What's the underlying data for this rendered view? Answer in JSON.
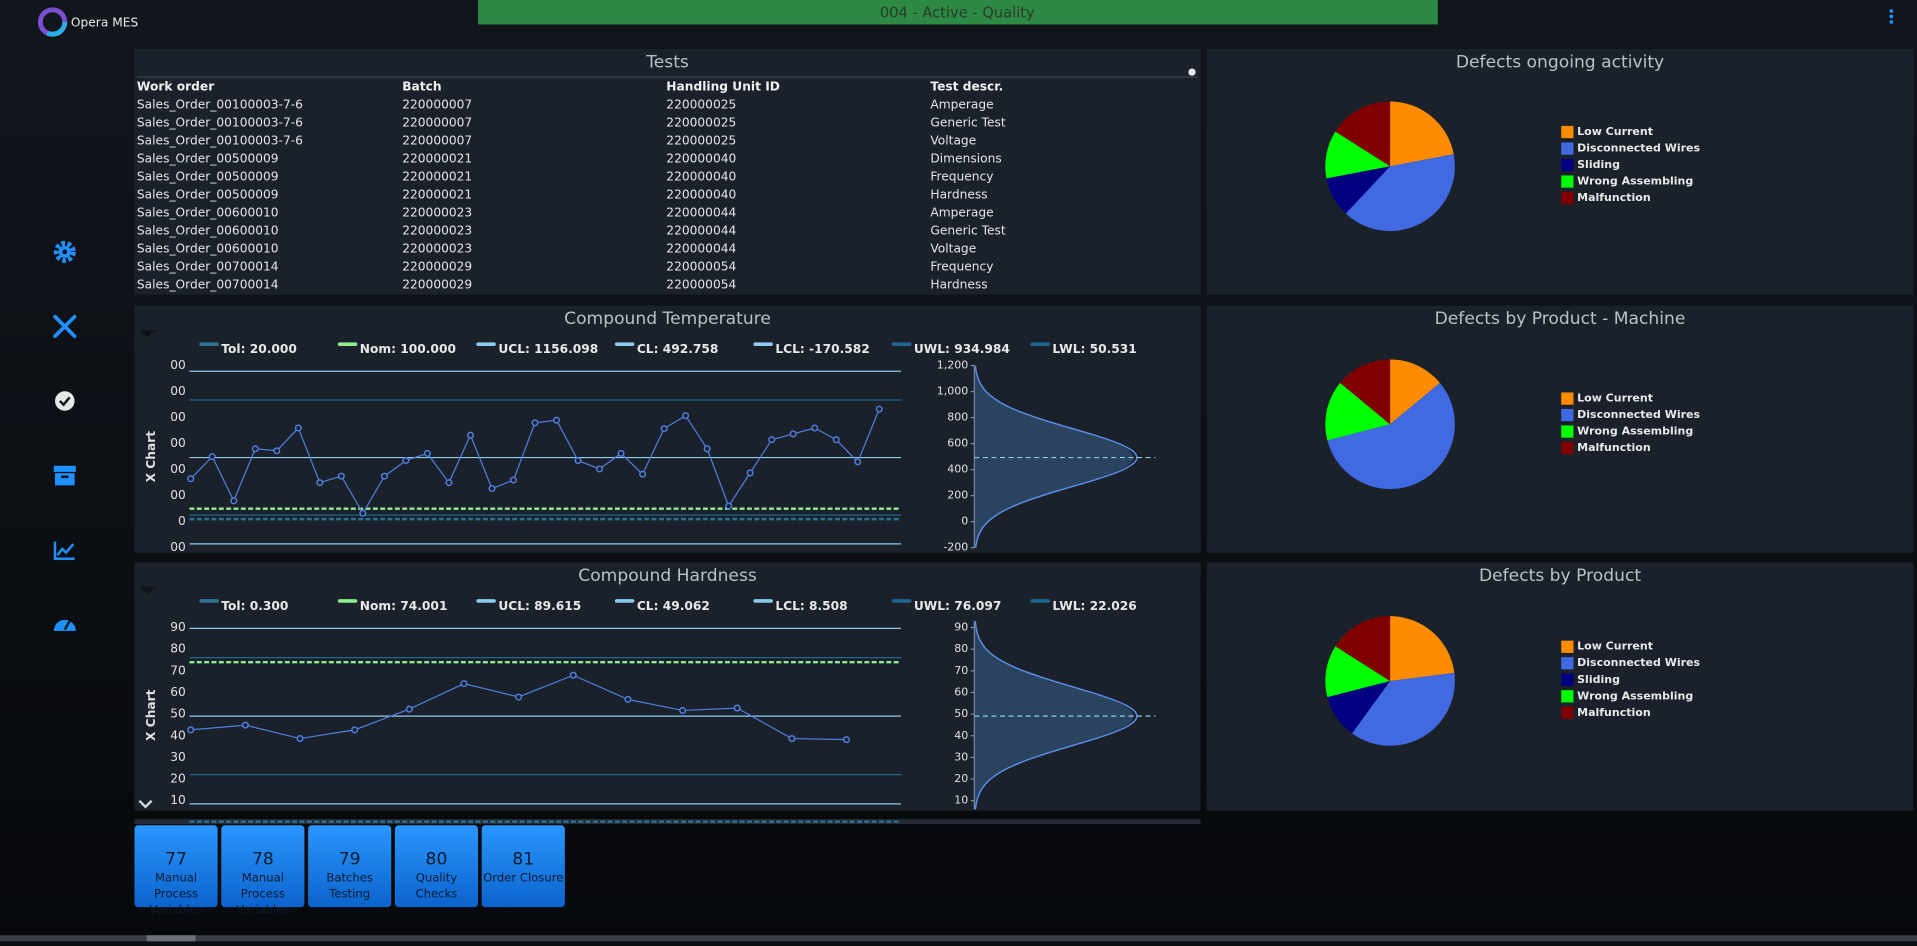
{
  "header": {
    "app": "Opera MES",
    "status": "004 - Active - Quality"
  },
  "table": {
    "title": "Tests",
    "columns": [
      "Work order",
      "Batch",
      "Handling Unit ID",
      "Test descr."
    ],
    "rows": [
      [
        "Sales_Order_00100003-7-6",
        "220000007",
        "220000025",
        "Amperage"
      ],
      [
        "Sales_Order_00100003-7-6",
        "220000007",
        "220000025",
        "Generic Test"
      ],
      [
        "Sales_Order_00100003-7-6",
        "220000007",
        "220000025",
        "Voltage"
      ],
      [
        "Sales_Order_00500009",
        "220000021",
        "220000040",
        "Dimensions"
      ],
      [
        "Sales_Order_00500009",
        "220000021",
        "220000040",
        "Frequency"
      ],
      [
        "Sales_Order_00500009",
        "220000021",
        "220000040",
        "Hardness"
      ],
      [
        "Sales_Order_00600010",
        "220000023",
        "220000044",
        "Amperage"
      ],
      [
        "Sales_Order_00600010",
        "220000023",
        "220000044",
        "Generic Test"
      ],
      [
        "Sales_Order_00600010",
        "220000023",
        "220000044",
        "Voltage"
      ],
      [
        "Sales_Order_00700014",
        "220000029",
        "220000054",
        "Frequency"
      ],
      [
        "Sales_Order_00700014",
        "220000029",
        "220000054",
        "Hardness"
      ]
    ]
  },
  "chart_data": [
    {
      "type": "control",
      "title": "Compound Temperature",
      "y_label": "X Chart",
      "color": "#4f7fe0",
      "ylim": [
        -200,
        1200
      ],
      "yticks": [
        -200,
        0,
        200,
        400,
        600,
        800,
        {
          "value": 1000,
          "label": "1,000"
        },
        {
          "value": 1200,
          "label": "1,200"
        }
      ],
      "limits": [
        {
          "label": "Tol: 20.000",
          "value": 20,
          "color": "#2f7394"
        },
        {
          "label": "Nom: 100.000",
          "value": 100,
          "color": "#90ee90"
        },
        {
          "label": "UCL: 1156.098",
          "value": 1156.098,
          "color": "#8ecbef"
        },
        {
          "label": "CL: 492.758",
          "value": 492.758,
          "color": "#8ecbef"
        },
        {
          "label": "LCL: -170.582",
          "value": -170.582,
          "color": "#8ecbef"
        },
        {
          "label": "UWL: 934.984",
          "value": 934.984,
          "color": "#1f6690"
        },
        {
          "label": "LWL: 50.531",
          "value": 50.531,
          "color": "#1f6690"
        }
      ],
      "values": [
        330,
        500,
        160,
        560,
        545,
        720,
        300,
        350,
        65,
        350,
        470,
        525,
        300,
        665,
        255,
        320,
        760,
        780,
        470,
        405,
        525,
        365,
        715,
        815,
        560,
        120,
        375,
        630,
        675,
        720,
        630,
        460,
        865
      ]
    },
    {
      "type": "control",
      "title": "Compound Hardness",
      "y_label": "X Chart",
      "color": "#4f7fe0",
      "ylim": [
        6,
        93
      ],
      "yticks": [
        10,
        20,
        30,
        40,
        50,
        60,
        70,
        80,
        90
      ],
      "limits": [
        {
          "label": "Tol: 0.300",
          "value": 0.3,
          "color": "#2f7394"
        },
        {
          "label": "Nom: 74.001",
          "value": 74.001,
          "color": "#90ee90"
        },
        {
          "label": "UCL: 89.615",
          "value": 89.615,
          "color": "#8ecbef"
        },
        {
          "label": "CL: 49.062",
          "value": 49.062,
          "color": "#8ecbef"
        },
        {
          "label": "LCL: 8.508",
          "value": 8.508,
          "color": "#8ecbef"
        },
        {
          "label": "UWL: 76.097",
          "value": 76.097,
          "color": "#1f6690"
        },
        {
          "label": "LWL: 22.026",
          "value": 22.026,
          "color": "#1f6690"
        }
      ],
      "values": [
        42.7,
        44.9,
        38.7,
        42.7,
        52.3,
        64.1,
        57.9,
        68,
        56.8,
        51.7,
        52.8,
        38.7,
        38.2
      ]
    },
    {
      "type": "pie",
      "title": "Defects ongoing activity",
      "categories": [
        "Low Current",
        "Disconnected Wires",
        "Sliding",
        "Wrong Assembling",
        "Malfunction"
      ],
      "values": [
        22,
        40,
        10,
        12,
        16
      ],
      "colors": [
        "#ff8c00",
        "#4169e1",
        "#000080",
        "#00ff00",
        "#800000"
      ]
    },
    {
      "type": "pie",
      "title": "Defects by Product - Machine",
      "categories": [
        "Low Current",
        "Disconnected Wires",
        "Wrong Assembling",
        "Malfunction"
      ],
      "values": [
        14,
        57,
        15,
        14
      ],
      "colors": [
        "#ff8c00",
        "#4169e1",
        "#00ff00",
        "#800000"
      ]
    },
    {
      "type": "pie",
      "title": "Defects by Product",
      "categories": [
        "Low Current",
        "Disconnected Wires",
        "Sliding",
        "Wrong Assembling",
        "Malfunction"
      ],
      "values": [
        23,
        37,
        11,
        13,
        16
      ],
      "colors": [
        "#ff8c00",
        "#4169e1",
        "#000080",
        "#00ff00",
        "#800000"
      ]
    }
  ],
  "buttons": [
    {
      "number": 77,
      "label": "Manual Process Variables"
    },
    {
      "number": 78,
      "label": "Manual Process Variables"
    },
    {
      "number": 79,
      "label": "Batches Testing"
    },
    {
      "number": 80,
      "label": "Quality Checks"
    },
    {
      "number": 81,
      "label": "Order Closure"
    }
  ]
}
